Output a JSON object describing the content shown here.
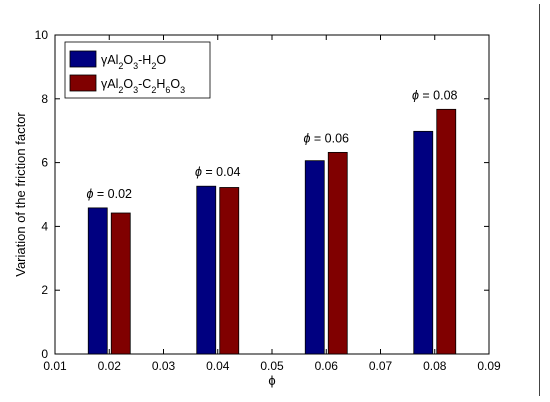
{
  "chart_data": {
    "type": "bar",
    "xlabel": "ϕ",
    "ylabel": "Variation of the friction factor",
    "xlim": [
      0.01,
      0.09
    ],
    "ylim": [
      0,
      10
    ],
    "xticks": [
      "0.01",
      "0.02",
      "0.03",
      "0.04",
      "0.05",
      "0.06",
      "0.07",
      "0.08",
      "0.09"
    ],
    "yticks": [
      "0",
      "2",
      "4",
      "6",
      "8",
      "10"
    ],
    "categories": [
      0.02,
      0.04,
      0.06,
      0.08
    ],
    "series": [
      {
        "name": "γAl2O3-H2O",
        "color": "#000080",
        "values": [
          4.58,
          5.26,
          6.06,
          6.98
        ]
      },
      {
        "name": "γAl2O3-C2H6O3",
        "color": "#800000",
        "values": [
          4.42,
          5.22,
          6.32,
          7.67
        ]
      }
    ],
    "annotations": [
      {
        "symbol": "ϕ",
        "text": " = 0.02",
        "x": 0.02,
        "y": 4.58
      },
      {
        "symbol": "ϕ",
        "text": " = 0.04",
        "x": 0.04,
        "y": 5.26
      },
      {
        "symbol": "ϕ",
        "text": " = 0.06",
        "x": 0.06,
        "y": 6.32
      },
      {
        "symbol": "ϕ",
        "text": " = 0.08",
        "x": 0.08,
        "y": 7.67
      }
    ],
    "legend_position": "top-left",
    "grid": false
  }
}
